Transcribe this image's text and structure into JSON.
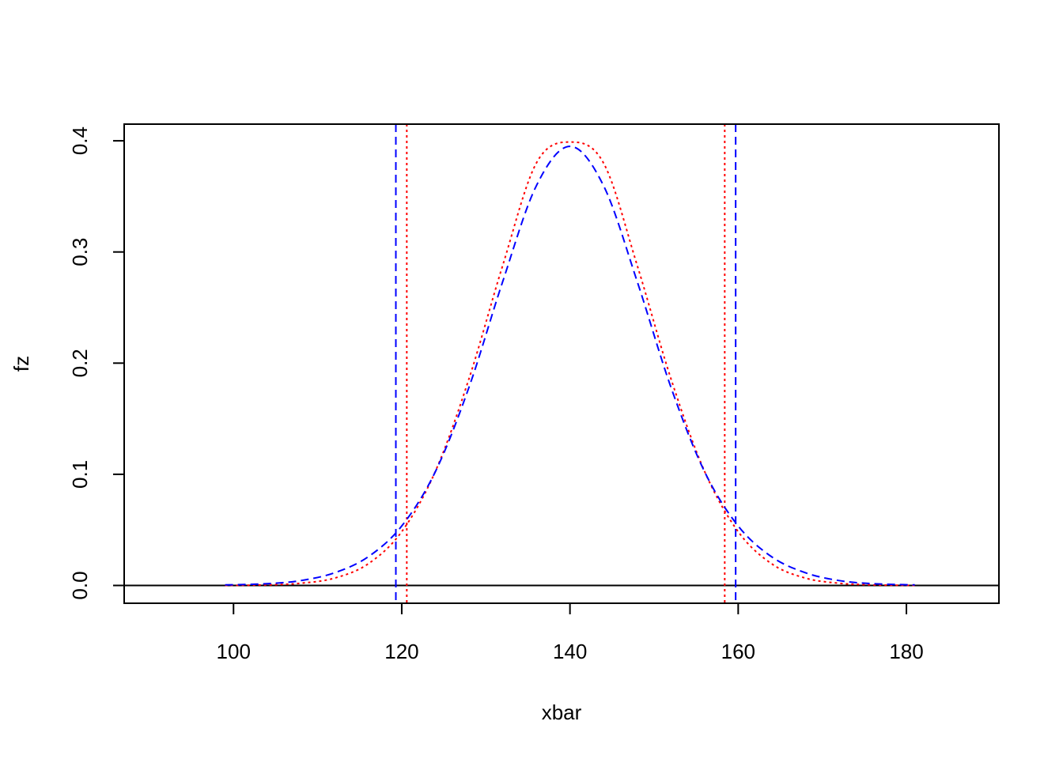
{
  "chart_data": {
    "type": "line",
    "title": "",
    "xlabel": "xbar",
    "ylabel": "fz",
    "xlim": [
      87,
      191
    ],
    "ylim": [
      -0.016,
      0.415
    ],
    "x_ticks": [
      {
        "value": 100,
        "label": "100"
      },
      {
        "value": 120,
        "label": "120"
      },
      {
        "value": 140,
        "label": "140"
      },
      {
        "value": 160,
        "label": "160"
      },
      {
        "value": 180,
        "label": "180"
      }
    ],
    "y_ticks": [
      {
        "value": 0.0,
        "label": "0.0"
      },
      {
        "value": 0.1,
        "label": "0.1"
      },
      {
        "value": 0.2,
        "label": "0.2"
      },
      {
        "value": 0.3,
        "label": "0.3"
      },
      {
        "value": 0.4,
        "label": "0.4"
      }
    ],
    "grid": false,
    "legend": "none",
    "series": [
      {
        "style": "dotted",
        "color": "#ff0000",
        "x": [
          99,
          104,
          108,
          112,
          116,
          120,
          124,
          128,
          132,
          136,
          140,
          144,
          148,
          152,
          156,
          160,
          164,
          168,
          172,
          176,
          181
        ],
        "y": [
          0.0,
          0.0005,
          0.002,
          0.0066,
          0.0194,
          0.0484,
          0.1027,
          0.1861,
          0.2878,
          0.3799,
          0.3989,
          0.3799,
          0.2878,
          0.1861,
          0.1027,
          0.0484,
          0.0194,
          0.0066,
          0.002,
          0.0005,
          0.0
        ]
      },
      {
        "style": "dashed",
        "color": "#0000ff",
        "x": [
          99,
          104,
          108,
          112,
          116,
          120,
          124,
          128,
          132,
          136,
          140,
          144,
          148,
          152,
          156,
          160,
          164,
          168,
          172,
          176,
          181
        ],
        "y": [
          0.0005,
          0.0016,
          0.0044,
          0.0114,
          0.0257,
          0.0535,
          0.1024,
          0.1784,
          0.2733,
          0.3595,
          0.395,
          0.3595,
          0.2733,
          0.1784,
          0.1024,
          0.0535,
          0.0257,
          0.0114,
          0.0044,
          0.0016,
          0.0005
        ]
      }
    ],
    "vertical_lines": [
      {
        "x": 120.6,
        "color": "#ff0000",
        "style": "dotted"
      },
      {
        "x": 158.4,
        "color": "#ff0000",
        "style": "dotted"
      },
      {
        "x": 119.3,
        "color": "#0000ff",
        "style": "dashed"
      },
      {
        "x": 159.7,
        "color": "#0000ff",
        "style": "dashed"
      }
    ],
    "horizontal_lines": [
      {
        "y": 0,
        "color": "#000000",
        "style": "solid"
      }
    ]
  }
}
